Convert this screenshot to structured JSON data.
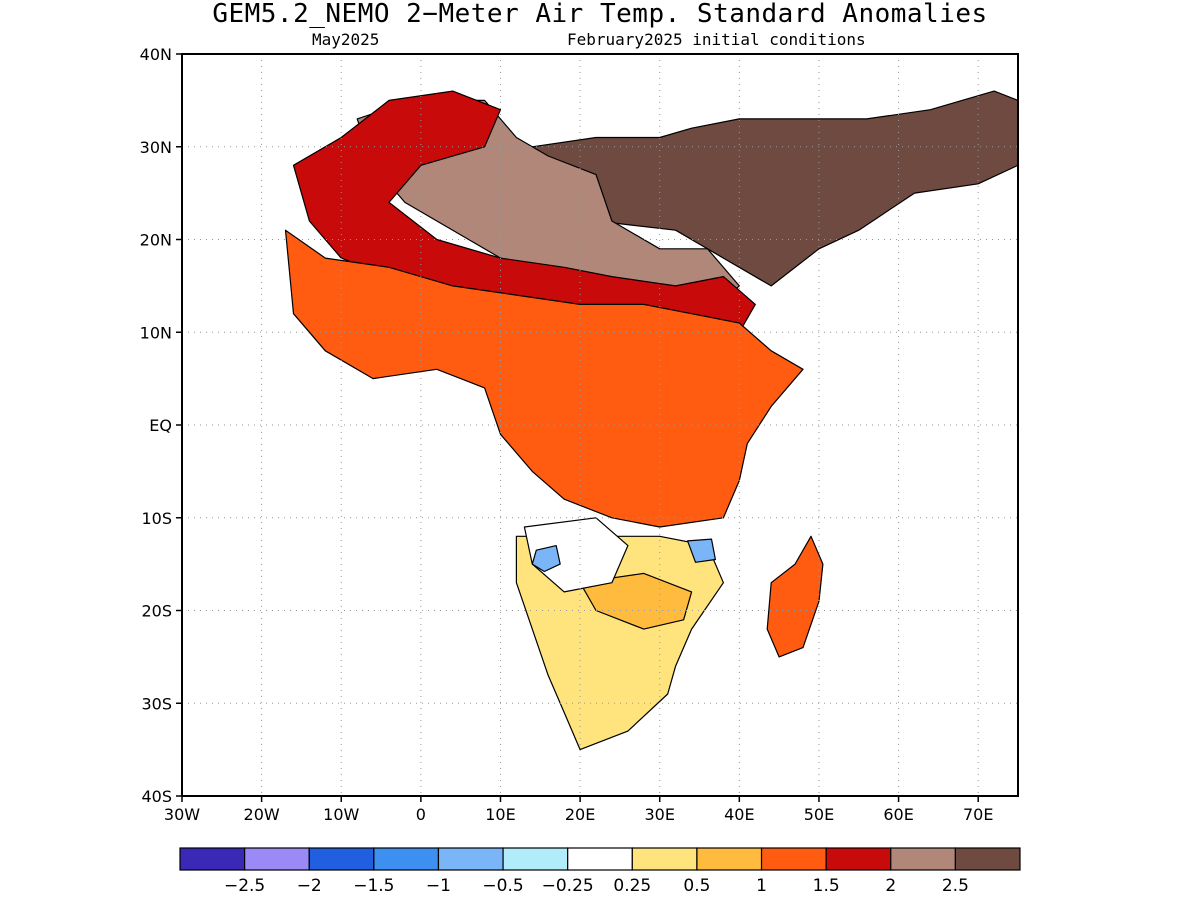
{
  "title": "GEM5.2_NEMO 2−Meter Air Temp. Standard Anomalies",
  "subtitle_left": "May2025",
  "subtitle_right": "February2025 initial conditions",
  "map": {
    "lon_range": [
      -30,
      75
    ],
    "lat_range": [
      -40,
      40
    ],
    "grid": "dotted",
    "lat_ticks": [
      {
        "value": 40,
        "label": "40N"
      },
      {
        "value": 30,
        "label": "30N"
      },
      {
        "value": 20,
        "label": "20N"
      },
      {
        "value": 10,
        "label": "10N"
      },
      {
        "value": 0,
        "label": "EQ"
      },
      {
        "value": -10,
        "label": "10S"
      },
      {
        "value": -20,
        "label": "20S"
      },
      {
        "value": -30,
        "label": "30S"
      },
      {
        "value": -40,
        "label": "40S"
      }
    ],
    "lon_ticks": [
      {
        "value": -30,
        "label": "30W"
      },
      {
        "value": -20,
        "label": "20W"
      },
      {
        "value": -10,
        "label": "10W"
      },
      {
        "value": 0,
        "label": "0"
      },
      {
        "value": 10,
        "label": "10E"
      },
      {
        "value": 20,
        "label": "20E"
      },
      {
        "value": 30,
        "label": "30E"
      },
      {
        "value": 40,
        "label": "40E"
      },
      {
        "value": 50,
        "label": "50E"
      },
      {
        "value": 60,
        "label": "60E"
      },
      {
        "value": 70,
        "label": "70E"
      }
    ]
  },
  "colorbar": {
    "colors": [
      "#3a28b6",
      "#9b8af6",
      "#2060e0",
      "#3d8ff0",
      "#7ab5f7",
      "#b0ecfa",
      "#ffffff",
      "#ffe37c",
      "#ffbb3e",
      "#ff5c12",
      "#c80a0a",
      "#b08779",
      "#6e4a40"
    ],
    "labels": [
      "−2.5",
      "−2",
      "−1.5",
      "−1",
      "−0.5",
      "−0.25",
      "0.25",
      "0.5",
      "1",
      "1.5",
      "2",
      "2.5"
    ]
  },
  "regions": [
    {
      "name": "sahara-arabia",
      "color_index": 12,
      "points": [
        [
          -2,
          33
        ],
        [
          5,
          31
        ],
        [
          14,
          30
        ],
        [
          22,
          31
        ],
        [
          30,
          31
        ],
        [
          34,
          32
        ],
        [
          40,
          33
        ],
        [
          48,
          33
        ],
        [
          56,
          33
        ],
        [
          64,
          34
        ],
        [
          72,
          36
        ],
        [
          75,
          35
        ],
        [
          75,
          28
        ],
        [
          70,
          26
        ],
        [
          62,
          25
        ],
        [
          55,
          21
        ],
        [
          50,
          19
        ],
        [
          44,
          15
        ],
        [
          38,
          18
        ],
        [
          32,
          21
        ],
        [
          22,
          22
        ],
        [
          12,
          23
        ],
        [
          4,
          24
        ],
        [
          -2,
          27
        ]
      ]
    },
    {
      "name": "west-sahara-mixed",
      "color_index": 11,
      "points": [
        [
          -8,
          33
        ],
        [
          -1,
          35
        ],
        [
          8,
          35
        ],
        [
          12,
          31
        ],
        [
          16,
          29
        ],
        [
          22,
          27
        ],
        [
          24,
          22
        ],
        [
          30,
          19
        ],
        [
          36,
          19
        ],
        [
          40,
          15
        ],
        [
          36,
          12
        ],
        [
          30,
          14
        ],
        [
          24,
          15
        ],
        [
          14,
          16
        ],
        [
          6,
          20
        ],
        [
          -2,
          24
        ],
        [
          -6,
          28
        ]
      ]
    },
    {
      "name": "warm-belt",
      "color_index": 10,
      "points": [
        [
          -16,
          28
        ],
        [
          -10,
          31
        ],
        [
          -4,
          35
        ],
        [
          4,
          36
        ],
        [
          10,
          34
        ],
        [
          8,
          30
        ],
        [
          0,
          28
        ],
        [
          -4,
          24
        ],
        [
          2,
          20
        ],
        [
          10,
          18
        ],
        [
          18,
          17
        ],
        [
          24,
          16
        ],
        [
          32,
          15
        ],
        [
          38,
          16
        ],
        [
          42,
          13
        ],
        [
          40,
          10
        ],
        [
          34,
          11
        ],
        [
          28,
          12
        ],
        [
          20,
          12
        ],
        [
          12,
          13
        ],
        [
          4,
          14
        ],
        [
          -4,
          16
        ],
        [
          -10,
          18
        ],
        [
          -14,
          22
        ]
      ]
    },
    {
      "name": "tropical-orange",
      "color_index": 9,
      "points": [
        [
          -17,
          21
        ],
        [
          -12,
          18
        ],
        [
          -4,
          17
        ],
        [
          4,
          15
        ],
        [
          12,
          14
        ],
        [
          20,
          13
        ],
        [
          28,
          13
        ],
        [
          34,
          12
        ],
        [
          40,
          11
        ],
        [
          44,
          8
        ],
        [
          48,
          6
        ],
        [
          44,
          2
        ],
        [
          41,
          -2
        ],
        [
          40,
          -6
        ],
        [
          38,
          -10
        ],
        [
          30,
          -11
        ],
        [
          24,
          -10
        ],
        [
          18,
          -8
        ],
        [
          14,
          -5
        ],
        [
          10,
          -1
        ],
        [
          8,
          4
        ],
        [
          2,
          6
        ],
        [
          -6,
          5
        ],
        [
          -12,
          8
        ],
        [
          -16,
          12
        ]
      ]
    },
    {
      "name": "southern-yellow",
      "color_index": 7,
      "points": [
        [
          12,
          -12
        ],
        [
          20,
          -12
        ],
        [
          30,
          -12
        ],
        [
          36,
          -13
        ],
        [
          38,
          -17
        ],
        [
          34,
          -22
        ],
        [
          32,
          -26
        ],
        [
          31,
          -29
        ],
        [
          26,
          -33
        ],
        [
          20,
          -35
        ],
        [
          18,
          -31
        ],
        [
          16,
          -27
        ],
        [
          14,
          -22
        ],
        [
          12,
          -17
        ]
      ]
    },
    {
      "name": "southern-orange",
      "color_index": 8,
      "points": [
        [
          20,
          -17
        ],
        [
          28,
          -16
        ],
        [
          34,
          -18
        ],
        [
          33,
          -21
        ],
        [
          28,
          -22
        ],
        [
          22,
          -20
        ]
      ]
    },
    {
      "name": "neutral-patch",
      "color_index": 6,
      "points": [
        [
          13,
          -11
        ],
        [
          22,
          -10
        ],
        [
          26,
          -13
        ],
        [
          24,
          -17
        ],
        [
          18,
          -18
        ],
        [
          14,
          -15
        ]
      ]
    },
    {
      "name": "angola-cool",
      "color_index": 4,
      "points": [
        [
          14.5,
          -13.5
        ],
        [
          17,
          -13
        ],
        [
          17.5,
          -15
        ],
        [
          15.5,
          -15.8
        ],
        [
          14,
          -15
        ]
      ]
    },
    {
      "name": "malawi-cool",
      "color_index": 4,
      "points": [
        [
          33.5,
          -12.5
        ],
        [
          36.5,
          -12.3
        ],
        [
          37,
          -14.5
        ],
        [
          34.5,
          -14.8
        ]
      ]
    },
    {
      "name": "madagascar",
      "color_index": 9,
      "points": [
        [
          49,
          -12
        ],
        [
          50.5,
          -15
        ],
        [
          50,
          -19
        ],
        [
          48,
          -24
        ],
        [
          45,
          -25
        ],
        [
          43.5,
          -22
        ],
        [
          44,
          -17
        ],
        [
          47,
          -15
        ]
      ]
    }
  ]
}
